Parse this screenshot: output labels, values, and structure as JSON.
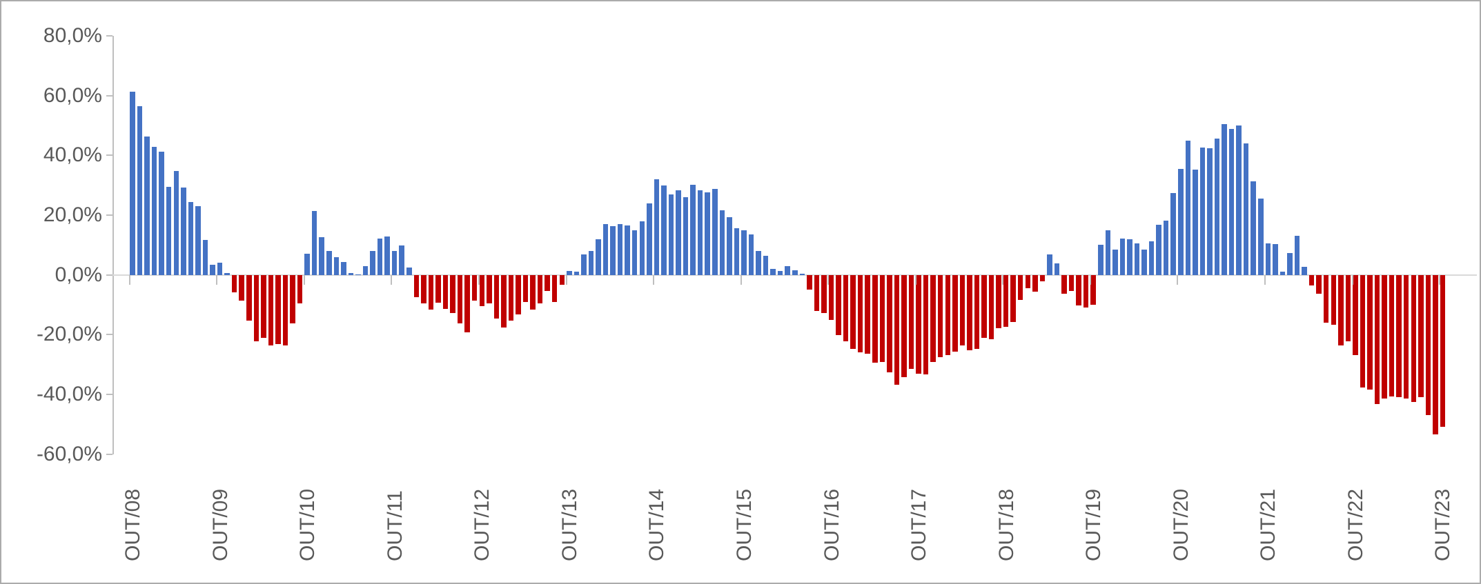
{
  "chart_data": {
    "type": "bar",
    "title": "",
    "xlabel": "",
    "ylabel": "",
    "legend": "none",
    "grid": "zero-line-only",
    "ylim": [
      -60,
      80
    ],
    "y_tick_values": [
      80,
      60,
      40,
      20,
      0,
      -20,
      -40,
      -60
    ],
    "y_tick_labels": [
      "80,0%",
      "60,0%",
      "40,0%",
      "20,0%",
      "0,0%",
      "-20,0%",
      "-40,0%",
      "-60,0%"
    ],
    "x_tick_labels": [
      "OUT/08",
      "OUT/09",
      "OUT/10",
      "OUT/11",
      "OUT/12",
      "OUT/13",
      "OUT/14",
      "OUT/15",
      "OUT/16",
      "OUT/17",
      "OUT/18",
      "OUT/19",
      "OUT/20",
      "OUT/21",
      "OUT/22",
      "OUT/23"
    ],
    "x_label_interval": 12,
    "positive_color": "#4472C4",
    "negative_color": "#C00000",
    "axis_text_color": "#595959",
    "values_pct": [
      61.2,
      56.4,
      46.3,
      42.8,
      41.3,
      29.5,
      34.7,
      29.3,
      24.4,
      23.1,
      11.8,
      3.3,
      4.1,
      0.6,
      -5.8,
      -8.7,
      -15.3,
      -22.3,
      -21.1,
      -23.6,
      -23.1,
      -23.6,
      -16.1,
      -9.5,
      7.0,
      21.3,
      12.6,
      7.9,
      6.0,
      4.4,
      0.6,
      0.2,
      2.9,
      7.9,
      12.2,
      12.8,
      8.1,
      9.9,
      2.5,
      -7.5,
      -9.6,
      -11.7,
      -9.2,
      -11.4,
      -12.8,
      -16.2,
      -19.2,
      -8.7,
      -10.4,
      -9.5,
      -14.5,
      -17.5,
      -15.3,
      -13.2,
      -9.1,
      -11.6,
      -9.5,
      -5.4,
      -9.1,
      -3.3,
      1.2,
      1.1,
      6.9,
      8.1,
      12.0,
      17.1,
      16.3,
      16.9,
      16.5,
      15.0,
      17.9,
      24.0,
      31.9,
      29.8,
      26.9,
      28.3,
      25.9,
      30.2,
      28.2,
      27.7,
      28.8,
      21.5,
      19.4,
      15.5,
      15.0,
      13.5,
      8.1,
      6.4,
      2.1,
      1.4,
      2.9,
      1.5,
      0.4,
      -5.0,
      -12.0,
      -12.8,
      -15.1,
      -20.2,
      -22.3,
      -24.8,
      -25.8,
      -26.4,
      -29.3,
      -29.1,
      -32.6,
      -36.8,
      -34.3,
      -31.4,
      -33.1,
      -33.2,
      -29.2,
      -27.5,
      -26.9,
      -25.6,
      -23.6,
      -25.2,
      -24.8,
      -21.1,
      -21.5,
      -17.8,
      -17.4,
      -15.7,
      -8.3,
      -4.5,
      -5.5,
      -2.2,
      6.8,
      3.9,
      -6.4,
      -5.4,
      -10.3,
      -11.0,
      -9.9,
      10.1,
      14.9,
      8.4,
      12.2,
      12.0,
      10.6,
      8.5,
      11.3,
      16.7,
      18.2,
      27.4,
      35.5,
      45.0,
      35.3,
      42.6,
      42.3,
      45.6,
      50.5,
      48.8,
      50.0,
      44.0,
      31.3,
      25.5,
      10.5,
      10.3,
      1.1,
      7.2,
      13.1,
      2.6,
      -3.6,
      -6.4,
      -16.0,
      -16.7,
      -23.7,
      -22.3,
      -26.9,
      -37.6,
      -38.3,
      -43.2,
      -41.3,
      -40.7,
      -40.9,
      -41.3,
      -42.5,
      -40.8,
      -46.9,
      -53.4,
      -50.7
    ]
  }
}
